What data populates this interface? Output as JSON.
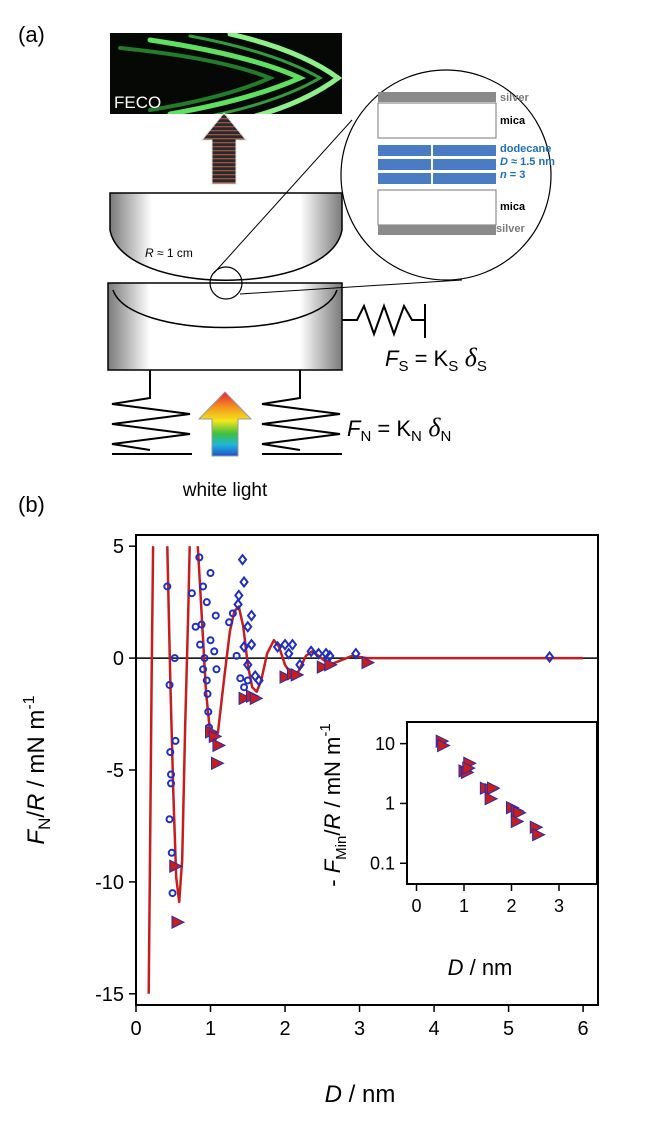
{
  "diagram": {
    "panel_a": "(a)",
    "feco": "FECO",
    "radius_label": [
      "R",
      " ≈ 1 cm"
    ],
    "stack": {
      "top_silver": "silver",
      "top_mica": "mica",
      "liquid": "dodecane",
      "spacing": [
        "D",
        " ≈ 1.5 nm"
      ],
      "layers": [
        "n",
        " = 3"
      ],
      "bottom_mica": "mica",
      "bottom_silver": "silver"
    },
    "shear_force": [
      "F",
      "S",
      " = K",
      "S",
      " δ",
      "S"
    ],
    "normal_force": [
      "F",
      "N",
      " = K",
      "N",
      " δ",
      "N"
    ],
    "light": "white light"
  },
  "panel_b": "(b)",
  "chart_data": [
    {
      "type": "scatter",
      "xlabel": [
        "D",
        " / nm"
      ],
      "ylabel": [
        "F",
        "N",
        "/",
        "R",
        " / mN m",
        "-1"
      ],
      "xlim": [
        0,
        6.2
      ],
      "ylim": [
        -15.5,
        5.5
      ],
      "xticks": [
        0,
        1,
        2,
        3,
        4,
        5,
        6
      ],
      "yticks": [
        5,
        0,
        -5,
        -10,
        -15
      ],
      "reference_line": 0,
      "series": [
        {
          "marker": "circle",
          "color": "#1f2fbf",
          "x": [
            0.42,
            0.45,
            0.46,
            0.47,
            0.47,
            0.45,
            0.48,
            0.49,
            0.52,
            0.53,
            0.75,
            0.8,
            0.85,
            0.9,
            0.88,
            0.86,
            0.92,
            0.9,
            0.95,
            0.96,
            0.97,
            0.98,
            1.0,
            0.95,
            1.0,
            1.05,
            1.08,
            1.07,
            1.25,
            1.3,
            1.35,
            1.4,
            1.45,
            1.5
          ],
          "values": [
            3.2,
            -1.2,
            -4.2,
            -5.2,
            -5.6,
            -7.2,
            -8.7,
            -10.5,
            0,
            -3.7,
            2.9,
            1.4,
            4.5,
            3.2,
            1.5,
            0.6,
            0,
            -0.5,
            -1,
            -1.6,
            -2.4,
            -3.1,
            3.8,
            2.5,
            0.8,
            0.3,
            -0.5,
            1.9,
            1.6,
            2,
            0.1,
            -0.9,
            -1.3,
            -1
          ]
        },
        {
          "marker": "diamond",
          "color": "#1f2fbf",
          "x": [
            1.37,
            1.38,
            1.45,
            1.43,
            1.55,
            1.5,
            1.55,
            1.45,
            1.5,
            1.6,
            1.65,
            1.9,
            2.0,
            2.1,
            2.05,
            2.2,
            2.35,
            2.45,
            2.55,
            2.6,
            2.95,
            5.55
          ],
          "values": [
            2.4,
            2.8,
            3.4,
            4.4,
            1.9,
            1.4,
            0.6,
            0.5,
            -0.3,
            -0.8,
            -1,
            0.5,
            0.6,
            0.6,
            0.2,
            -0.3,
            0.3,
            0.2,
            0.2,
            0.1,
            0.2,
            0.05
          ]
        },
        {
          "marker": "triangle-right",
          "color": "#c41e1e",
          "x": [
            0.52,
            0.55,
            1.0,
            1.05,
            1.1,
            1.08,
            1.45,
            1.55,
            1.6,
            2.0,
            2.1,
            2.15,
            2.5,
            2.6,
            3.1
          ],
          "values": [
            -9.3,
            -11.8,
            -3.3,
            -3.5,
            -3.9,
            -4.7,
            -1.8,
            -1.7,
            -1.8,
            -0.85,
            -0.7,
            -0.75,
            -0.4,
            -0.3,
            -0.2
          ]
        },
        {
          "marker": "line",
          "color": "#c41e1e",
          "x": [
            0.17,
            0.19,
            0.21,
            0.23,
            0.3,
            0.42,
            0.46,
            0.5,
            0.54,
            0.58,
            0.62,
            0.66,
            0.7,
            0.72,
            0.78,
            0.83,
            0.88,
            0.94,
            1.0,
            1.05,
            1.1,
            1.18,
            1.26,
            1.32,
            1.38,
            1.44,
            1.5,
            1.56,
            1.62,
            1.68,
            1.76,
            1.85,
            1.92,
            2.0,
            2.1,
            2.18,
            2.28,
            2.36,
            2.45,
            2.6,
            2.75,
            2.9,
            3.1,
            6
          ],
          "values": [
            -15,
            -8,
            -1,
            5,
            null,
            5,
            -1,
            -6,
            -9.8,
            -10.9,
            -9,
            -3,
            2,
            5,
            null,
            5,
            2,
            -1.5,
            -3.5,
            -3.8,
            -3.3,
            -1,
            1.2,
            2.1,
            2.3,
            1.4,
            -0.3,
            -1.3,
            -1.5,
            -1,
            0.2,
            0.8,
            0.5,
            -0.3,
            -0.8,
            -0.6,
            0.1,
            0.3,
            0.1,
            -0.3,
            -0.1,
            0.1,
            0,
            0
          ]
        }
      ]
    },
    {
      "type": "scatter",
      "xlabel": [
        "D",
        " / nm"
      ],
      "ylabel": [
        "- ",
        "F",
        "Min",
        "/",
        "R",
        " / mN m",
        "-1"
      ],
      "xlim": [
        -0.2,
        3.8
      ],
      "ylim": [
        0.045,
        23
      ],
      "yscale": "log",
      "xticks": [
        0,
        1,
        2,
        3
      ],
      "yticks": [
        0.1,
        1,
        10
      ],
      "series": [
        {
          "marker": "triangle-right",
          "color": "#c41e1e",
          "x": [
            0.52,
            0.55,
            1.0,
            1.05,
            1.1,
            1.08,
            1.45,
            1.55,
            1.6,
            1.55,
            2.0,
            2.1,
            2.15,
            2.1,
            2.5,
            2.55
          ],
          "values": [
            11,
            9.3,
            3.5,
            3.3,
            4.7,
            3.9,
            1.8,
            1.7,
            1.8,
            1.2,
            0.85,
            0.75,
            0.7,
            0.5,
            0.4,
            0.3
          ]
        }
      ]
    }
  ]
}
